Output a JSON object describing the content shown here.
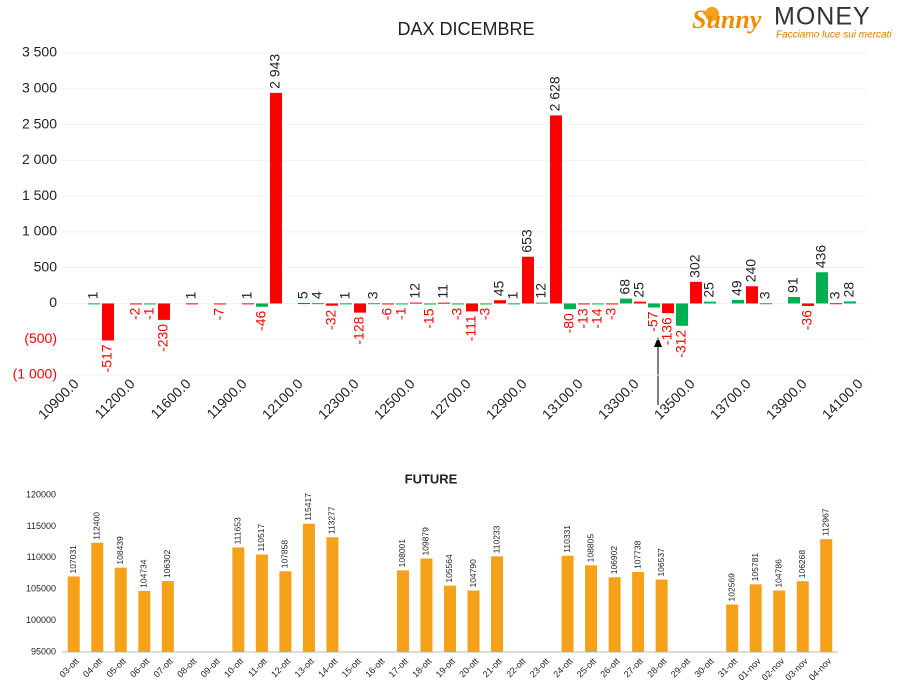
{
  "logo": {
    "brand_a": "Sunny",
    "brand_b": "MONEY",
    "tagline": "Facciamo luce sui mercati"
  },
  "chart_data": [
    {
      "type": "bar",
      "title": "DAX DICEMBRE",
      "categories": [
        "10900.0",
        null,
        "11200.0",
        null,
        "11600.0",
        null,
        "11900.0",
        null,
        "12100.0",
        null,
        "12300.0",
        null,
        "12500.0",
        null,
        "12700.0",
        null,
        "12900.0",
        null,
        "13100.0",
        null,
        "13300.0",
        null,
        "13500.0",
        null,
        "13700.0",
        null,
        "13900.0",
        null,
        "14100.0"
      ],
      "series": [
        {
          "color": "#00b050",
          "values": [
            null,
            1,
            null,
            -1,
            null,
            null,
            null,
            -46,
            null,
            4,
            1,
            3,
            -1,
            -15,
            -3,
            -3,
            1,
            12,
            -80,
            -14,
            68,
            -57,
            -312,
            25,
            49,
            3,
            91,
            436,
            28
          ]
        },
        {
          "color": "#ff0000",
          "values": [
            null,
            -517,
            -2,
            -230,
            1,
            -7,
            1,
            2943,
            5,
            -32,
            -128,
            -6,
            12,
            11,
            -111,
            45,
            653,
            2628,
            -13,
            -3,
            25,
            -136,
            302,
            null,
            240,
            null,
            -36,
            3,
            null
          ],
          "value_labels": [
            null,
            "-517",
            "-2",
            "-230",
            "1",
            "-7",
            "1",
            "2 943",
            "5",
            "-32",
            "-128",
            "-6",
            "12",
            "11",
            "-111",
            "45",
            "653",
            "2 628",
            "-13",
            "-3",
            "25",
            "-136",
            "302",
            null,
            "240",
            null,
            "-36",
            "3",
            null
          ]
        }
      ],
      "ylim": [
        -1000,
        3500
      ],
      "yticks": [
        {
          "value": -1000,
          "label": "(1 000)"
        },
        {
          "value": -500,
          "label": "(500)"
        },
        0,
        500,
        {
          "value": 1000,
          "label": "1 000"
        },
        {
          "value": 1500,
          "label": "1 500"
        },
        {
          "value": 2000,
          "label": "2 000"
        },
        {
          "value": 2500,
          "label": "2 500"
        },
        {
          "value": 3000,
          "label": "3 000"
        },
        {
          "value": 3500,
          "label": "3 500"
        }
      ],
      "negative_color": "#ff0000",
      "grid": true
    },
    {
      "type": "bar",
      "title": "FUTURE",
      "categories": [
        "03-ott",
        "04-ott",
        "05-ott",
        "06-ott",
        "07-ott",
        "08-ott",
        "09-ott",
        "10-ott",
        "11-ott",
        "12-ott",
        "13-ott",
        "14-ott",
        "15-ott",
        "16-ott",
        "17-ott",
        "18-ott",
        "19-ott",
        "20-ott",
        "21-ott",
        "22-ott",
        "23-ott",
        "24-ott",
        "25-ott",
        "26-ott",
        "27-ott",
        "28-ott",
        "29-ott",
        "30-ott",
        "31-ott",
        "01-nov",
        "02-nov",
        "03-nov",
        "04-nov"
      ],
      "values": [
        107031,
        112400,
        108439,
        104734,
        106302,
        null,
        null,
        111653,
        110517,
        107858,
        115417,
        113277,
        null,
        null,
        108001,
        109879,
        105564,
        104790,
        110233,
        null,
        null,
        110331,
        108805,
        106902,
        107738,
        106537,
        null,
        null,
        102569,
        105781,
        104786,
        106268,
        112967
      ],
      "color": "#f5a11a",
      "ylim": [
        95000,
        120000
      ],
      "yticks": [
        95000,
        100000,
        105000,
        110000,
        115000,
        120000
      ],
      "grid": false
    }
  ]
}
